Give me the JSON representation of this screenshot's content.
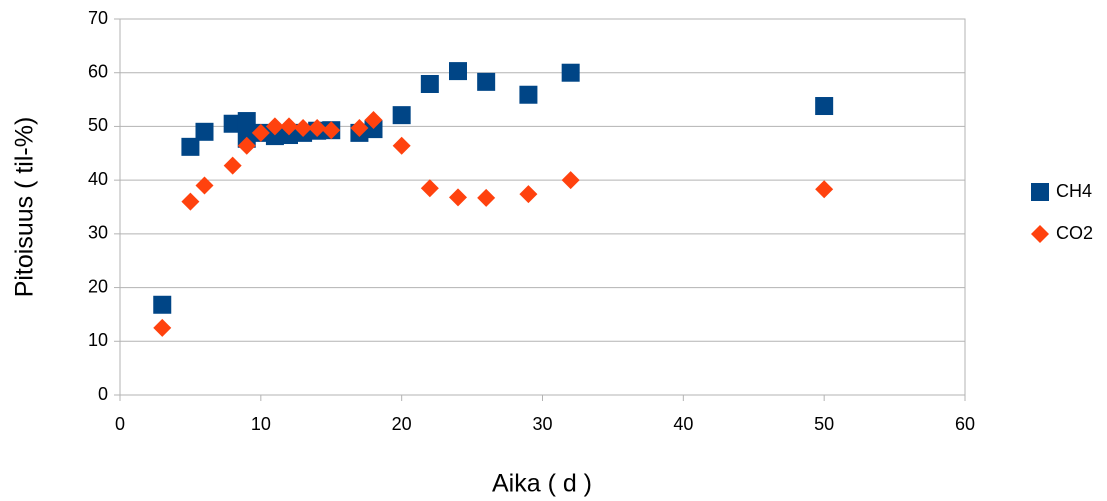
{
  "chart_data": {
    "type": "scatter",
    "x_label": "Aika ( d )",
    "y_label": "Pitoisuus ( til-%)",
    "xlim": [
      0,
      60
    ],
    "xticks": [
      0,
      10,
      20,
      30,
      40,
      50,
      60
    ],
    "ylim": [
      0,
      70
    ],
    "yticks": [
      0,
      10,
      20,
      30,
      40,
      50,
      60,
      70
    ],
    "grid": true,
    "legend": "right",
    "series": [
      {
        "name": "CH4",
        "color": "#004586",
        "marker": "square",
        "x": [
          3,
          5,
          6,
          8,
          9,
          9,
          10,
          11,
          12,
          13,
          14,
          15,
          17,
          18,
          20,
          22,
          24,
          26,
          29,
          32,
          50
        ],
        "values": [
          16.8,
          46.2,
          49,
          50.5,
          51,
          47.7,
          48.8,
          48.2,
          48.4,
          48.8,
          49.2,
          49.3,
          48.8,
          49.5,
          52.1,
          57.9,
          60.3,
          58.3,
          55.9,
          60,
          53.8
        ]
      },
      {
        "name": "CO2",
        "color": "#ff420e",
        "marker": "diamond",
        "x": [
          3,
          5,
          6,
          8,
          9,
          10,
          11,
          12,
          13,
          14,
          15,
          17,
          18,
          20,
          22,
          24,
          26,
          29,
          32,
          50
        ],
        "values": [
          12.5,
          36,
          39,
          42.7,
          46.4,
          48.8,
          50,
          50,
          49.7,
          49.7,
          49.3,
          49.7,
          51.2,
          46.4,
          38.5,
          36.8,
          36.7,
          37.4,
          40,
          38.3
        ]
      }
    ]
  }
}
